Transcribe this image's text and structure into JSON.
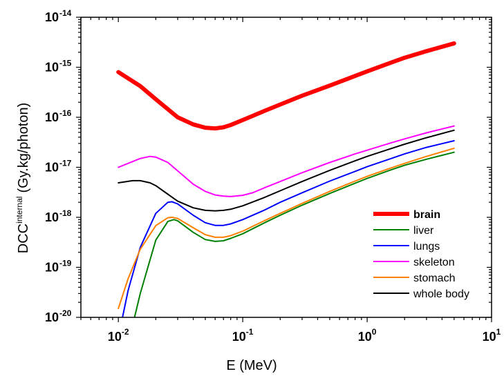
{
  "chart_data": {
    "type": "line",
    "xscale": "log",
    "yscale": "log",
    "xlim": [
      0.005,
      10
    ],
    "ylim": [
      1e-20,
      1e-14
    ],
    "xlabel": "E (MeV)",
    "ylabel_main": "DCC",
    "ylabel_sup": "internal",
    "ylabel_unit": "(Gy.kg/photon)",
    "x_ticks": [
      {
        "value": 0.01,
        "base": "10",
        "exp": "-2"
      },
      {
        "value": 0.1,
        "base": "10",
        "exp": "-1"
      },
      {
        "value": 1,
        "base": "10",
        "exp": "0"
      },
      {
        "value": 10,
        "base": "10",
        "exp": "1"
      }
    ],
    "y_ticks": [
      {
        "value": 1e-20,
        "base": "10",
        "exp": "-20"
      },
      {
        "value": 1e-19,
        "base": "10",
        "exp": "-19"
      },
      {
        "value": 1e-18,
        "base": "10",
        "exp": "-18"
      },
      {
        "value": 1e-17,
        "base": "10",
        "exp": "-17"
      },
      {
        "value": 1e-16,
        "base": "10",
        "exp": "-16"
      },
      {
        "value": 1e-15,
        "base": "10",
        "exp": "-15"
      },
      {
        "value": 1e-14,
        "base": "10",
        "exp": "-14"
      }
    ],
    "legend_position": "bottom-right",
    "grid": false,
    "series": [
      {
        "name": "brain",
        "color": "#ff0000",
        "bold": true,
        "x": [
          0.01,
          0.015,
          0.02,
          0.03,
          0.04,
          0.05,
          0.06,
          0.07,
          0.08,
          0.1,
          0.15,
          0.2,
          0.3,
          0.5,
          0.8,
          1,
          1.5,
          2,
          3,
          5
        ],
        "y": [
          8e-16,
          4.2e-16,
          2.3e-16,
          1e-16,
          7.2e-17,
          6.2e-17,
          6e-17,
          6.3e-17,
          7e-17,
          8.8e-17,
          1.35e-16,
          1.8e-16,
          2.7e-16,
          4.3e-16,
          6.7e-16,
          8.3e-16,
          1.2e-15,
          1.55e-15,
          2.1e-15,
          3e-15
        ]
      },
      {
        "name": "liver",
        "color": "#008000",
        "bold": false,
        "x": [
          0.0135,
          0.015,
          0.02,
          0.025,
          0.028,
          0.03,
          0.04,
          0.05,
          0.06,
          0.07,
          0.08,
          0.1,
          0.15,
          0.2,
          0.3,
          0.5,
          0.8,
          1,
          1.5,
          2,
          3,
          5
        ],
        "y": [
          1e-20,
          3e-20,
          3.5e-19,
          8.3e-19,
          9e-19,
          8.5e-19,
          5e-19,
          3.6e-19,
          3.3e-19,
          3.4e-19,
          3.8e-19,
          4.7e-19,
          7.8e-19,
          1.1e-18,
          1.75e-18,
          3e-18,
          4.8e-18,
          6e-18,
          8.6e-18,
          1.1e-17,
          1.45e-17,
          2e-17
        ]
      },
      {
        "name": "lungs",
        "color": "#0000ff",
        "bold": false,
        "x": [
          0.0108,
          0.012,
          0.015,
          0.02,
          0.025,
          0.027,
          0.03,
          0.04,
          0.05,
          0.06,
          0.07,
          0.08,
          0.1,
          0.15,
          0.2,
          0.3,
          0.5,
          0.8,
          1,
          1.5,
          2,
          3,
          5
        ],
        "y": [
          1e-20,
          3.5e-20,
          2.5e-19,
          1.2e-18,
          2e-18,
          2.05e-18,
          1.85e-18,
          1.1e-18,
          7.8e-19,
          6.9e-19,
          6.9e-19,
          7.4e-19,
          9e-19,
          1.4e-18,
          2e-18,
          3.1e-18,
          5.3e-18,
          8.3e-18,
          1.03e-17,
          1.45e-17,
          1.85e-17,
          2.5e-17,
          3.4e-17
        ]
      },
      {
        "name": "skeleton",
        "color": "#ff00ff",
        "bold": false,
        "x": [
          0.01,
          0.015,
          0.018,
          0.02,
          0.025,
          0.03,
          0.04,
          0.05,
          0.06,
          0.07,
          0.08,
          0.1,
          0.12,
          0.15,
          0.2,
          0.3,
          0.5,
          0.8,
          1,
          1.5,
          2,
          3,
          5
        ],
        "y": [
          1e-17,
          1.5e-17,
          1.65e-17,
          1.6e-17,
          1.25e-17,
          8.5e-18,
          4.6e-18,
          3.3e-18,
          2.8e-18,
          2.65e-18,
          2.6e-18,
          2.75e-18,
          3.1e-18,
          3.9e-18,
          5.2e-18,
          7.8e-18,
          1.25e-17,
          1.85e-17,
          2.2e-17,
          3e-17,
          3.7e-17,
          4.9e-17,
          6.7e-17
        ]
      },
      {
        "name": "stomach",
        "color": "#ff8000",
        "bold": false,
        "x": [
          0.01,
          0.012,
          0.015,
          0.02,
          0.025,
          0.027,
          0.03,
          0.04,
          0.05,
          0.06,
          0.07,
          0.08,
          0.1,
          0.15,
          0.2,
          0.3,
          0.5,
          0.8,
          1,
          1.5,
          2,
          3,
          5
        ],
        "y": [
          1.5e-20,
          6e-20,
          2.3e-19,
          6.8e-19,
          9.8e-19,
          1e-18,
          9.5e-19,
          6.2e-19,
          4.5e-19,
          4e-19,
          4e-19,
          4.3e-19,
          5.3e-19,
          8.6e-19,
          1.2e-18,
          1.9e-18,
          3.3e-18,
          5.3e-18,
          6.6e-18,
          9.4e-18,
          1.2e-17,
          1.65e-17,
          2.4e-17
        ]
      },
      {
        "name": "whole body",
        "color": "#000000",
        "bold": false,
        "x": [
          0.01,
          0.013,
          0.015,
          0.018,
          0.02,
          0.025,
          0.03,
          0.04,
          0.05,
          0.06,
          0.07,
          0.08,
          0.1,
          0.15,
          0.2,
          0.3,
          0.5,
          0.8,
          1,
          1.5,
          2,
          3,
          5
        ],
        "y": [
          4.9e-18,
          5.4e-18,
          5.4e-18,
          4.9e-18,
          4.3e-18,
          2.9e-18,
          2.1e-18,
          1.55e-18,
          1.38e-18,
          1.35e-18,
          1.38e-18,
          1.45e-18,
          1.7e-18,
          2.5e-18,
          3.4e-18,
          5.2e-18,
          8.7e-18,
          1.35e-17,
          1.65e-17,
          2.3e-17,
          2.9e-17,
          3.9e-17,
          5.5e-17
        ]
      }
    ]
  }
}
